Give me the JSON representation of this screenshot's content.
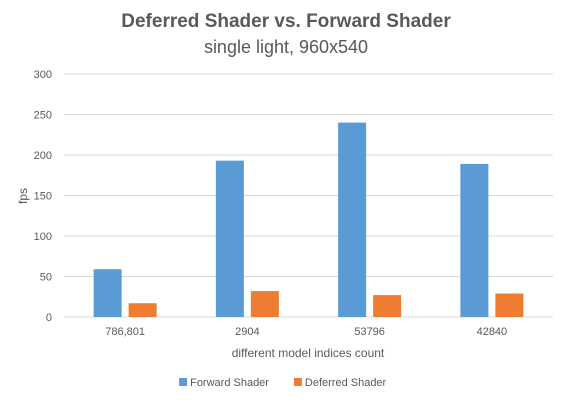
{
  "chart_data": {
    "type": "bar",
    "title": "Deferred Shader vs. Forward Shader",
    "subtitle": "single light, 960x540",
    "xlabel": "different model indices count",
    "ylabel": "fps",
    "categories": [
      "786,801",
      "2904",
      "53796",
      "42840"
    ],
    "series": [
      {
        "name": "Forward Shader",
        "color": "#5b9bd5",
        "values": [
          59,
          193,
          240,
          189
        ]
      },
      {
        "name": "Deferred Shader",
        "color": "#ed7d31",
        "values": [
          17,
          32,
          27,
          29
        ]
      }
    ],
    "ylim": [
      0,
      300
    ],
    "yticks": [
      0,
      50,
      100,
      150,
      200,
      250,
      300
    ],
    "grid": true,
    "legend_position": "bottom"
  }
}
